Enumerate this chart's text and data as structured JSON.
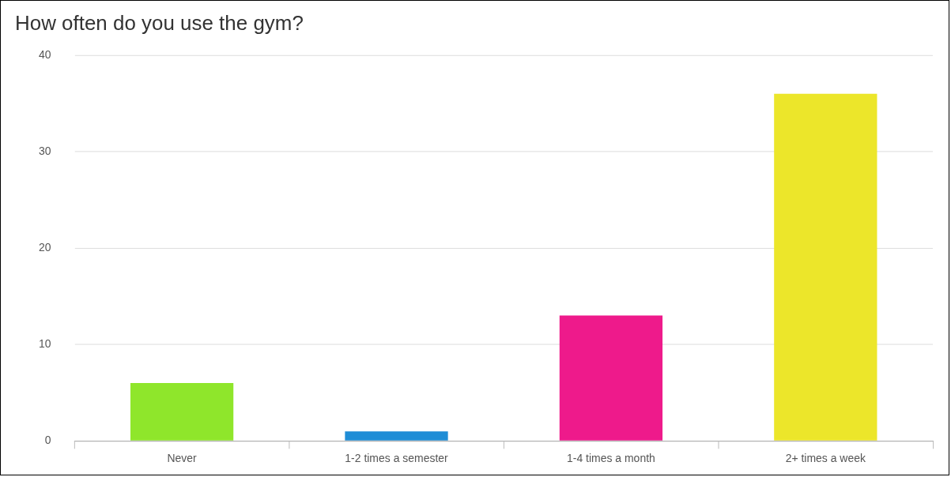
{
  "chart_data": {
    "type": "bar",
    "title": "How often do you use the gym?",
    "categories": [
      "Never",
      "1-2 times a semester",
      "1-4 times a month",
      "2+ times a week"
    ],
    "values": [
      6,
      1,
      13,
      36
    ],
    "colors": [
      "#8fe62b",
      "#1f8dd6",
      "#ee1a8b",
      "#ece62a"
    ],
    "ylim": [
      0,
      40
    ],
    "yticks": [
      0,
      10,
      20,
      30,
      40
    ],
    "grid": "y",
    "legend": false
  }
}
